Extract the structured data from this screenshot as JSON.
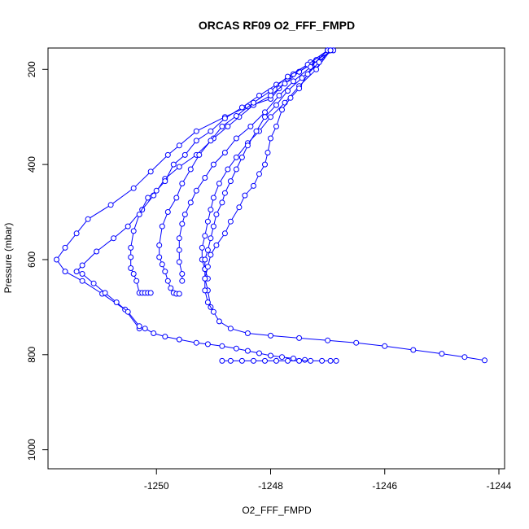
{
  "chart_data": {
    "type": "line",
    "title": "ORCAS RF09 O2_FFF_FMPD",
    "xlabel": "O2_FFF_FMPD",
    "ylabel": "Pressure (mbar)",
    "xlim": [
      -1251.9,
      -1243.9
    ],
    "ylim": [
      1040,
      155
    ],
    "y_reversed": true,
    "x_ticks": [
      -1250,
      -1248,
      -1246,
      -1244
    ],
    "y_ticks": [
      200,
      400,
      600,
      800,
      1000
    ],
    "x_tick_labels": [
      "-1250",
      "-1248",
      "-1246",
      "-1244"
    ],
    "y_tick_labels": [
      "200",
      "400",
      "600",
      "800",
      "1000"
    ],
    "grid": false,
    "color": "#0000ff",
    "marker": "open-circle",
    "series": [
      {
        "x": [
          -1246.9,
          -1247.1,
          -1247.3,
          -1247.5,
          -1247.7,
          -1247.85,
          -1248.0,
          -1248.4,
          -1248.8,
          -1249.3,
          -1249.6,
          -1249.8,
          -1250.1,
          -1250.4,
          -1250.8,
          -1251.2,
          -1251.4,
          -1251.6,
          -1251.75,
          -1251.6,
          -1251.3,
          -1250.95,
          -1250.55,
          -1250.3
        ],
        "y": [
          160,
          175,
          190,
          205,
          220,
          240,
          262,
          278,
          300,
          330,
          360,
          380,
          415,
          450,
          485,
          515,
          545,
          575,
          600,
          625,
          645,
          672,
          705,
          745
        ]
      },
      {
        "x": [
          -1246.9,
          -1247.2,
          -1247.5,
          -1247.75,
          -1248.0,
          -1248.3,
          -1248.55,
          -1248.75,
          -1249.0,
          -1249.3,
          -1249.6,
          -1249.85,
          -1250.05,
          -1250.25,
          -1250.5,
          -1250.75,
          -1251.05,
          -1251.3,
          -1251.4,
          -1251.3,
          -1251.1,
          -1250.9,
          -1250.7,
          -1250.5,
          -1250.3
        ],
        "y": [
          160,
          180,
          205,
          230,
          255,
          275,
          300,
          320,
          345,
          380,
          405,
          430,
          465,
          495,
          530,
          555,
          583,
          612,
          625,
          630,
          650,
          670,
          690,
          710,
          740
        ]
      },
      {
        "x": [
          -1247.0,
          -1247.3,
          -1247.6,
          -1247.9,
          -1248.2,
          -1248.5,
          -1248.8,
          -1249.05,
          -1249.3,
          -1249.5,
          -1249.7,
          -1249.85,
          -1250.0,
          -1250.15,
          -1250.3,
          -1250.4,
          -1250.45,
          -1250.45,
          -1250.45,
          -1250.4,
          -1250.35,
          -1250.3,
          -1250.25,
          -1250.2,
          -1250.15,
          -1250.1
        ],
        "y": [
          160,
          185,
          210,
          232,
          255,
          280,
          303,
          330,
          350,
          380,
          400,
          435,
          455,
          470,
          505,
          540,
          575,
          595,
          618,
          630,
          645,
          670,
          670,
          670,
          670,
          670
        ]
      },
      {
        "x": [
          -1247.0,
          -1247.35,
          -1247.7,
          -1248.0,
          -1248.3,
          -1248.6,
          -1248.85,
          -1249.05,
          -1249.25,
          -1249.4,
          -1249.55,
          -1249.65,
          -1249.8,
          -1249.9,
          -1249.95,
          -1249.95,
          -1249.9,
          -1249.85,
          -1249.8,
          -1249.75,
          -1249.7,
          -1249.65,
          -1249.6
        ],
        "y": [
          160,
          190,
          215,
          245,
          270,
          298,
          320,
          350,
          380,
          410,
          440,
          470,
          500,
          530,
          570,
          595,
          610,
          625,
          645,
          660,
          670,
          672,
          672
        ]
      },
      {
        "x": [
          -1247.0,
          -1247.3,
          -1247.6,
          -1247.85,
          -1248.1,
          -1248.35,
          -1248.6,
          -1248.8,
          -1249.0,
          -1249.15,
          -1249.3,
          -1249.4,
          -1249.5,
          -1249.55,
          -1249.6,
          -1249.6,
          -1249.6,
          -1249.55,
          -1249.55
        ],
        "y": [
          160,
          195,
          225,
          255,
          290,
          320,
          345,
          375,
          400,
          428,
          455,
          480,
          505,
          525,
          555,
          580,
          605,
          630,
          645
        ]
      },
      {
        "x": [
          -1246.95,
          -1247.2,
          -1247.5,
          -1247.75,
          -1248.0,
          -1248.2,
          -1248.4,
          -1248.6,
          -1248.75,
          -1248.9,
          -1249.0,
          -1249.05,
          -1249.1,
          -1249.15,
          -1249.2,
          -1249.2,
          -1249.15,
          -1249.1
        ],
        "y": [
          160,
          200,
          235,
          270,
          300,
          330,
          355,
          385,
          410,
          440,
          470,
          495,
          520,
          550,
          575,
          600,
          620,
          640
        ]
      },
      {
        "x": [
          -1246.95,
          -1247.2,
          -1247.45,
          -1247.7,
          -1247.9,
          -1248.1,
          -1248.25,
          -1248.4,
          -1248.5,
          -1248.6,
          -1248.7,
          -1248.8,
          -1248.85,
          -1248.95,
          -1249.0,
          -1249.05,
          -1249.1,
          -1249.15,
          -1249.15,
          -1249.15,
          -1249.1,
          -1249.05
        ],
        "y": [
          160,
          190,
          218,
          245,
          275,
          300,
          330,
          360,
          385,
          410,
          435,
          460,
          480,
          505,
          530,
          555,
          580,
          600,
          620,
          640,
          665,
          700
        ]
      },
      {
        "x": [
          -1246.95,
          -1247.15,
          -1247.35,
          -1247.5,
          -1247.65,
          -1247.8,
          -1247.9,
          -1248.0,
          -1248.05,
          -1248.1,
          -1248.2,
          -1248.3,
          -1248.45,
          -1248.55,
          -1248.7,
          -1248.8,
          -1248.95,
          -1249.05,
          -1249.1,
          -1249.15,
          -1249.15,
          -1249.1,
          -1249.0,
          -1248.9,
          -1248.7,
          -1248.4,
          -1248.0,
          -1247.5,
          -1247.0,
          -1246.5,
          -1246.0,
          -1245.5,
          -1245.0,
          -1244.6,
          -1244.25
        ],
        "y": [
          160,
          185,
          210,
          240,
          260,
          285,
          320,
          345,
          375,
          400,
          420,
          445,
          465,
          490,
          520,
          545,
          570,
          590,
          615,
          640,
          665,
          690,
          710,
          730,
          745,
          755,
          760,
          765,
          770,
          775,
          782,
          790,
          798,
          805,
          812
        ]
      },
      {
        "x": [
          -1250.2,
          -1250.05,
          -1249.85,
          -1249.6,
          -1249.3,
          -1249.1,
          -1248.85,
          -1248.6,
          -1248.4,
          -1248.2,
          -1248.0,
          -1247.8,
          -1247.6,
          -1247.4
        ],
        "y": [
          745,
          755,
          762,
          768,
          775,
          778,
          782,
          787,
          792,
          797,
          802,
          805,
          808,
          811
        ]
      },
      {
        "x": [
          -1248.85,
          -1248.7,
          -1248.5,
          -1248.3,
          -1248.1,
          -1247.9,
          -1247.7,
          -1247.5,
          -1247.3,
          -1247.1,
          -1246.95,
          -1246.85
        ],
        "y": [
          813,
          813,
          813,
          813,
          813,
          813,
          813,
          813,
          813,
          813,
          813,
          813
        ]
      }
    ]
  }
}
